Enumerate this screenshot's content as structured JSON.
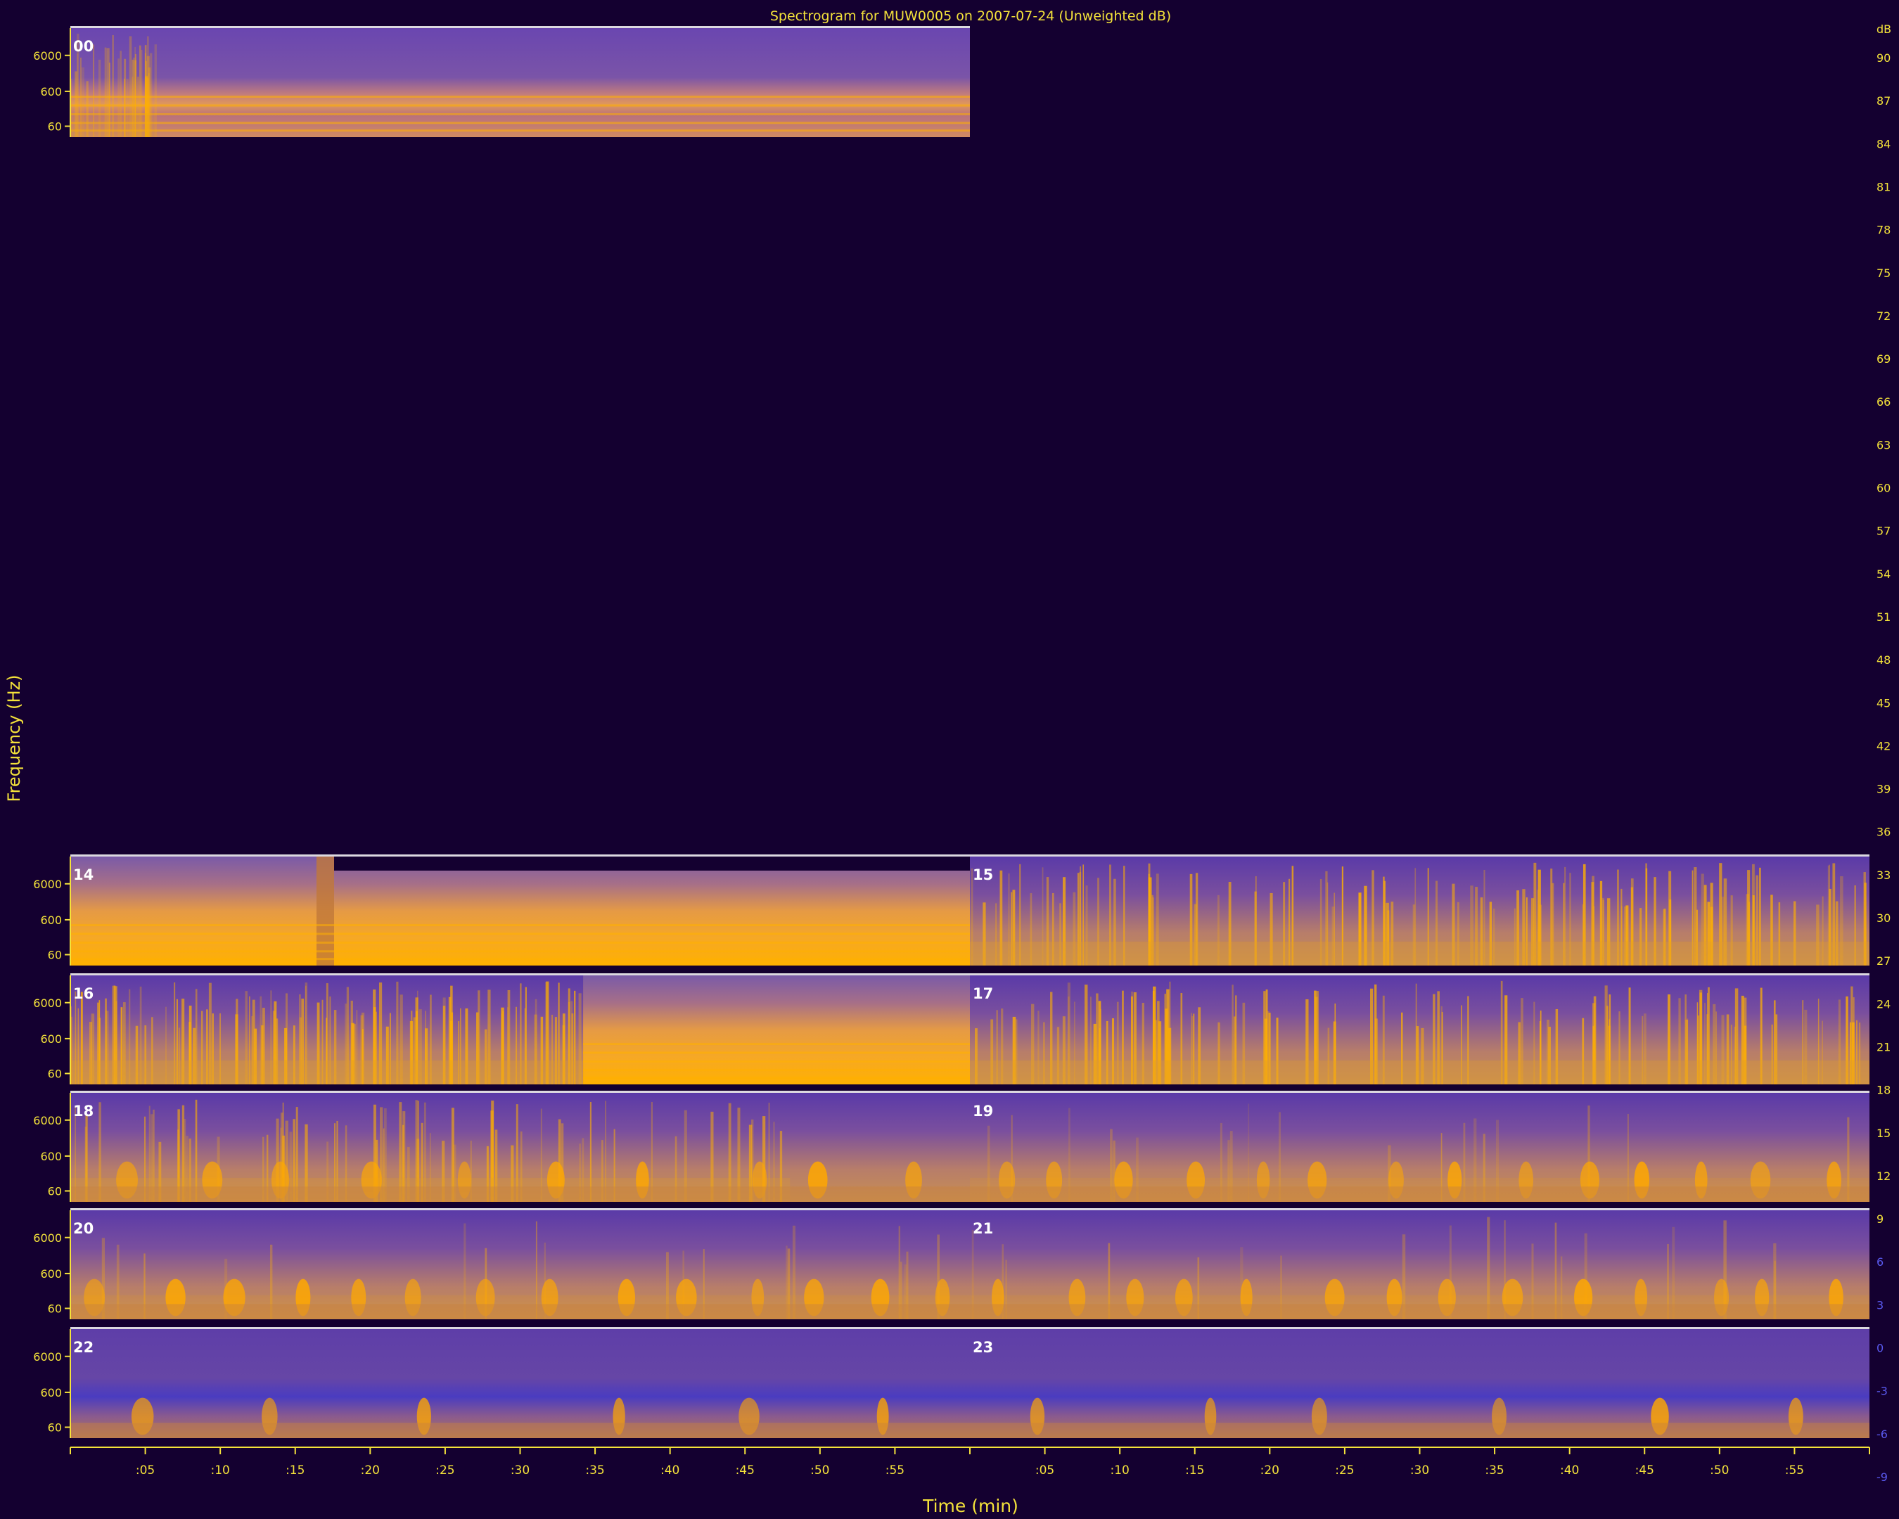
{
  "chart_data": {
    "type": "heatmap",
    "title": "Spectrogram for MUW0005 on 2007-07-24 (Unweighted dB)",
    "xlabel": "Time (min)",
    "ylabel": "Frequency (Hz)",
    "x_ticks": [
      ":05",
      ":10",
      ":15",
      ":20",
      ":25",
      ":30",
      ":35",
      ":40",
      ":45",
      ":50",
      ":55"
    ],
    "y_ticks": [
      "6000",
      "600",
      "60"
    ],
    "colorbar": {
      "unit": "dB",
      "ticks": [
        "90",
        "87",
        "84",
        "81",
        "78",
        "75",
        "72",
        "69",
        "66",
        "63",
        "60",
        "57",
        "54",
        "51",
        "48",
        "45",
        "42",
        "39",
        "36",
        "33",
        "30",
        "27",
        "24",
        "21",
        "18",
        "15",
        "12",
        "9",
        "6",
        "3",
        "0",
        "-3",
        "-6",
        "-9"
      ]
    },
    "hour_labels": [
      "00",
      "14",
      "15",
      "16",
      "17",
      "18",
      "19",
      "20",
      "21",
      "22",
      "23"
    ],
    "panels": [
      {
        "hour": "00",
        "recorded_from_min": 0,
        "recorded_to_min": 60,
        "character": "steady hum, stronger tones in first minutes"
      },
      {
        "hour": "14",
        "recorded_from_min": 0,
        "recorded_to_min": 60,
        "character": "steady horizontal bands, gap near minute 17"
      },
      {
        "hour": "15",
        "recorded_from_min": 0,
        "recorded_to_min": 60,
        "character": "dense broadband vertical events"
      },
      {
        "hour": "16",
        "recorded_from_min": 0,
        "recorded_to_min": 60,
        "character": "dense events until ~34 min, then steady bands"
      },
      {
        "hour": "17",
        "recorded_from_min": 0,
        "recorded_to_min": 60,
        "character": "dense broadband vertical events"
      },
      {
        "hour": "18",
        "recorded_from_min": 0,
        "recorded_to_min": 60,
        "character": "events with low-frequency bursts"
      },
      {
        "hour": "19",
        "recorded_from_min": 0,
        "recorded_to_min": 60,
        "character": "periodic low-frequency bursts"
      },
      {
        "hour": "20",
        "recorded_from_min": 0,
        "recorded_to_min": 60,
        "character": "periodic low-frequency bursts"
      },
      {
        "hour": "21",
        "recorded_from_min": 0,
        "recorded_to_min": 60,
        "character": "periodic low-frequency bursts"
      },
      {
        "hour": "22",
        "recorded_from_min": 0,
        "recorded_to_min": 60,
        "character": "quieter, sparse bursts"
      },
      {
        "hour": "23",
        "recorded_from_min": 0,
        "recorded_to_min": 60,
        "character": "quieter, sparse bursts"
      }
    ],
    "colors": {
      "background": "#140030",
      "text": "#f4e23a",
      "hour_label": "#ffffff",
      "low": "#4a2d9c",
      "mid": "#b4669a",
      "high": "#ffb300"
    }
  }
}
